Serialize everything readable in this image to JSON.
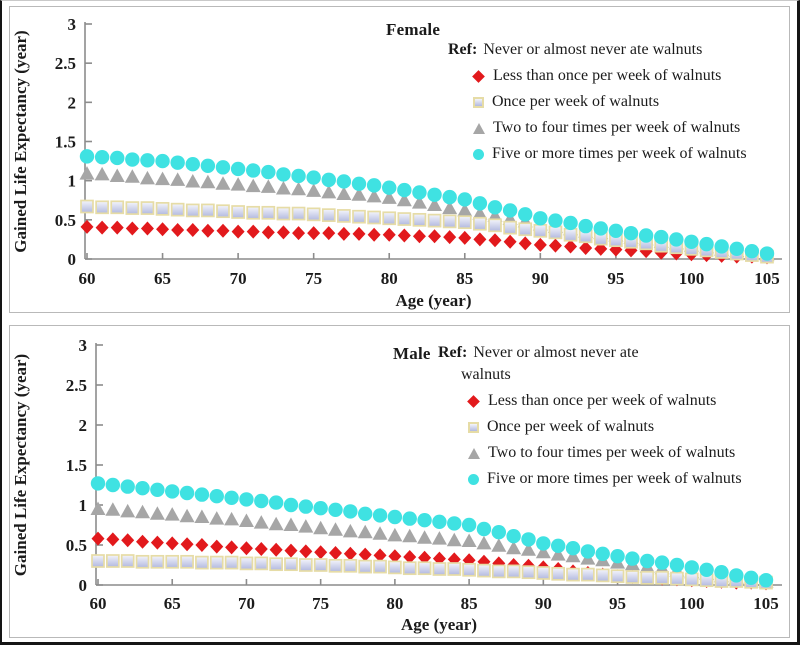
{
  "palette": {
    "red": "#E2191C",
    "gray": "#A6A6A6",
    "cyan": "#3FE2E2",
    "square_border": "#E6DCA6",
    "square_fill_top": "#F4F5FB",
    "square_fill_bottom": "#B2B9DF",
    "axis": "#8C8C8C",
    "text": "#1B1B1B",
    "panel_border": "#B9B9B9"
  },
  "chart_data": [
    {
      "type": "scatter",
      "title": "Female",
      "xlabel": "Age (year)",
      "ylabel": "Gained Life Expectancy (year)",
      "xlim": [
        60,
        105
      ],
      "ylim": [
        0,
        3
      ],
      "grid": false,
      "legend_position": "top-right-inside",
      "x_ticks": [
        60,
        65,
        70,
        75,
        80,
        85,
        90,
        95,
        100,
        105
      ],
      "y_ticks": [
        "0",
        "0.5",
        "1",
        "1.5",
        "2",
        "2.5",
        "3"
      ],
      "legend_ref_prefix": "Ref:",
      "legend_ref_lines": [
        "Never or almost never ate walnuts"
      ],
      "x": [
        60,
        61,
        62,
        63,
        64,
        65,
        66,
        67,
        68,
        69,
        70,
        71,
        72,
        73,
        74,
        75,
        76,
        77,
        78,
        79,
        80,
        81,
        82,
        83,
        84,
        85,
        86,
        87,
        88,
        89,
        90,
        91,
        92,
        93,
        94,
        95,
        96,
        97,
        98,
        99,
        100,
        101,
        102,
        103,
        104,
        105
      ],
      "series": [
        {
          "label": "Less than once per week of walnuts",
          "marker": "diamond",
          "color_key": "red",
          "values": [
            0.41,
            0.4,
            0.4,
            0.39,
            0.39,
            0.38,
            0.37,
            0.37,
            0.36,
            0.36,
            0.35,
            0.35,
            0.34,
            0.34,
            0.33,
            0.33,
            0.33,
            0.32,
            0.32,
            0.31,
            0.31,
            0.3,
            0.29,
            0.29,
            0.28,
            0.27,
            0.25,
            0.24,
            0.22,
            0.2,
            0.18,
            0.17,
            0.16,
            0.14,
            0.13,
            0.12,
            0.11,
            0.1,
            0.08,
            0.07,
            0.06,
            0.05,
            0.04,
            0.03,
            0.03,
            0.02
          ]
        },
        {
          "label": "Once per week of walnuts",
          "marker": "square",
          "color_key": "square",
          "values": [
            0.67,
            0.66,
            0.66,
            0.65,
            0.65,
            0.64,
            0.63,
            0.62,
            0.62,
            0.61,
            0.6,
            0.59,
            0.59,
            0.58,
            0.58,
            0.57,
            0.56,
            0.55,
            0.54,
            0.53,
            0.52,
            0.51,
            0.5,
            0.49,
            0.48,
            0.47,
            0.45,
            0.43,
            0.4,
            0.38,
            0.36,
            0.34,
            0.31,
            0.29,
            0.26,
            0.24,
            0.22,
            0.2,
            0.17,
            0.15,
            0.13,
            0.11,
            0.09,
            0.07,
            0.05,
            0.03
          ]
        },
        {
          "label": "Two to four times per week of walnuts",
          "marker": "triangle",
          "color_key": "gray",
          "values": [
            1.09,
            1.08,
            1.06,
            1.05,
            1.03,
            1.02,
            1.01,
            0.99,
            0.98,
            0.96,
            0.95,
            0.93,
            0.92,
            0.9,
            0.89,
            0.87,
            0.85,
            0.83,
            0.82,
            0.8,
            0.78,
            0.75,
            0.72,
            0.69,
            0.65,
            0.62,
            0.58,
            0.55,
            0.51,
            0.48,
            0.44,
            0.41,
            0.38,
            0.35,
            0.33,
            0.3,
            0.27,
            0.25,
            0.22,
            0.2,
            0.17,
            0.15,
            0.12,
            0.1,
            0.07,
            0.05
          ]
        },
        {
          "label": "Five or more times per week of walnuts",
          "marker": "circle",
          "color_key": "cyan",
          "values": [
            1.31,
            1.3,
            1.29,
            1.27,
            1.26,
            1.25,
            1.23,
            1.21,
            1.19,
            1.17,
            1.15,
            1.13,
            1.11,
            1.08,
            1.06,
            1.04,
            1.01,
            0.99,
            0.96,
            0.94,
            0.91,
            0.88,
            0.85,
            0.82,
            0.79,
            0.76,
            0.71,
            0.66,
            0.62,
            0.57,
            0.52,
            0.49,
            0.46,
            0.42,
            0.39,
            0.36,
            0.33,
            0.3,
            0.28,
            0.25,
            0.22,
            0.19,
            0.16,
            0.13,
            0.1,
            0.07
          ]
        }
      ]
    },
    {
      "type": "scatter",
      "title": "Male",
      "xlabel": "Age (year)",
      "ylabel": "Gained Life Expectancy (year)",
      "xlim": [
        60,
        105
      ],
      "ylim": [
        0,
        3
      ],
      "grid": false,
      "legend_position": "top-right-inside",
      "x_ticks": [
        60,
        65,
        70,
        75,
        80,
        85,
        90,
        95,
        100,
        105
      ],
      "y_ticks": [
        "0",
        "0.5",
        "1",
        "1.5",
        "2",
        "2.5",
        "3"
      ],
      "legend_ref_prefix": "Ref:",
      "legend_ref_lines": [
        "Never or almost never ate",
        "walnuts"
      ],
      "x": [
        60,
        61,
        62,
        63,
        64,
        65,
        66,
        67,
        68,
        69,
        70,
        71,
        72,
        73,
        74,
        75,
        76,
        77,
        78,
        79,
        80,
        81,
        82,
        83,
        84,
        85,
        86,
        87,
        88,
        89,
        90,
        91,
        92,
        93,
        94,
        95,
        96,
        97,
        98,
        99,
        100,
        101,
        102,
        103,
        104,
        105
      ],
      "series": [
        {
          "label": "Less than once per week of walnuts",
          "marker": "diamond",
          "color_key": "red",
          "values": [
            0.58,
            0.57,
            0.56,
            0.54,
            0.53,
            0.52,
            0.51,
            0.5,
            0.48,
            0.47,
            0.46,
            0.45,
            0.44,
            0.43,
            0.42,
            0.41,
            0.4,
            0.39,
            0.38,
            0.37,
            0.36,
            0.35,
            0.34,
            0.33,
            0.32,
            0.31,
            0.29,
            0.27,
            0.25,
            0.24,
            0.22,
            0.2,
            0.17,
            0.15,
            0.13,
            0.11,
            0.1,
            0.09,
            0.08,
            0.07,
            0.06,
            0.05,
            0.04,
            0.03,
            0.03,
            0.02
          ]
        },
        {
          "label": "Once per week of walnuts",
          "marker": "square",
          "color_key": "square",
          "values": [
            0.3,
            0.3,
            0.3,
            0.29,
            0.29,
            0.29,
            0.29,
            0.28,
            0.28,
            0.28,
            0.27,
            0.27,
            0.26,
            0.26,
            0.25,
            0.25,
            0.24,
            0.24,
            0.23,
            0.23,
            0.22,
            0.21,
            0.21,
            0.2,
            0.2,
            0.19,
            0.18,
            0.17,
            0.17,
            0.16,
            0.15,
            0.14,
            0.13,
            0.13,
            0.12,
            0.11,
            0.1,
            0.09,
            0.09,
            0.08,
            0.07,
            0.06,
            0.05,
            0.05,
            0.04,
            0.03
          ]
        },
        {
          "label": "Two to four times per week of walnuts",
          "marker": "triangle",
          "color_key": "gray",
          "values": [
            0.95,
            0.94,
            0.92,
            0.91,
            0.89,
            0.88,
            0.86,
            0.85,
            0.83,
            0.82,
            0.8,
            0.78,
            0.76,
            0.75,
            0.73,
            0.71,
            0.69,
            0.67,
            0.66,
            0.64,
            0.62,
            0.61,
            0.59,
            0.58,
            0.56,
            0.55,
            0.52,
            0.49,
            0.46,
            0.44,
            0.41,
            0.38,
            0.36,
            0.33,
            0.31,
            0.28,
            0.26,
            0.23,
            0.21,
            0.18,
            0.16,
            0.14,
            0.11,
            0.09,
            0.06,
            0.04
          ]
        },
        {
          "label": "Five or more times per week of walnuts",
          "marker": "circle",
          "color_key": "cyan",
          "values": [
            1.27,
            1.25,
            1.23,
            1.21,
            1.19,
            1.17,
            1.15,
            1.13,
            1.11,
            1.09,
            1.07,
            1.05,
            1.03,
            1.0,
            0.98,
            0.96,
            0.94,
            0.92,
            0.89,
            0.87,
            0.85,
            0.83,
            0.81,
            0.79,
            0.77,
            0.75,
            0.7,
            0.66,
            0.61,
            0.57,
            0.52,
            0.49,
            0.46,
            0.42,
            0.39,
            0.36,
            0.33,
            0.3,
            0.28,
            0.25,
            0.22,
            0.19,
            0.16,
            0.12,
            0.09,
            0.06
          ]
        }
      ]
    }
  ]
}
